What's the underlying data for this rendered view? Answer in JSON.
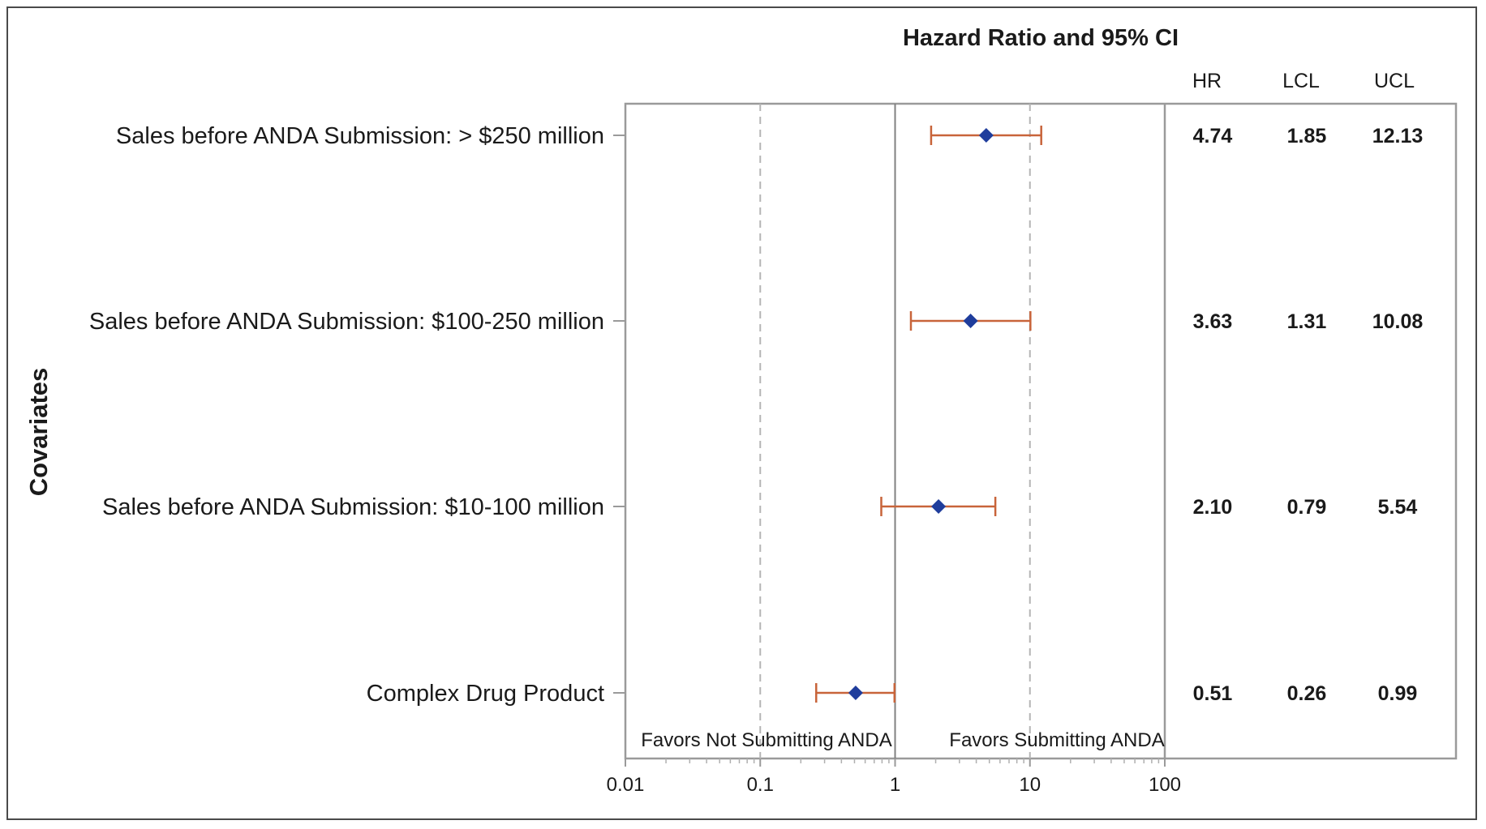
{
  "chart_data": {
    "type": "forest",
    "title": "Hazard Ratio and 95% CI",
    "ylabel": "Covariates",
    "xscale": "log",
    "xlim": [
      0.01,
      100
    ],
    "x_ticks": [
      "0.01",
      "0.1",
      "1",
      "10",
      "100"
    ],
    "reference_lines": {
      "solid": 1,
      "dashed": [
        0.1,
        10
      ]
    },
    "annotations": {
      "left": "Favors Not Submitting ANDA",
      "right": "Favors Submitting ANDA"
    },
    "columns": [
      "HR",
      "LCL",
      "UCL"
    ],
    "rows": [
      {
        "label": "Sales before ANDA Submission: > $250 million",
        "hr": 4.74,
        "lcl": 1.85,
        "ucl": 12.13,
        "hr_text": "4.74",
        "lcl_text": "1.85",
        "ucl_text": "12.13"
      },
      {
        "label": "Sales before ANDA Submission: $100-250 million",
        "hr": 3.63,
        "lcl": 1.31,
        "ucl": 10.08,
        "hr_text": "3.63",
        "lcl_text": "1.31",
        "ucl_text": "10.08"
      },
      {
        "label": "Sales before ANDA Submission: $10-100 million",
        "hr": 2.1,
        "lcl": 0.79,
        "ucl": 5.54,
        "hr_text": "2.10",
        "lcl_text": "0.79",
        "ucl_text": "5.54"
      },
      {
        "label": "Complex Drug Product",
        "hr": 0.51,
        "lcl": 0.26,
        "ucl": 0.99,
        "hr_text": "0.51",
        "lcl_text": "0.26",
        "ucl_text": "0.99"
      }
    ],
    "colors": {
      "point": "#1f3d9c",
      "ci": "#c8643a",
      "frame": "#9a9a9a",
      "ref_solid": "#808080",
      "ref_dashed": "#b5b5b5"
    }
  }
}
